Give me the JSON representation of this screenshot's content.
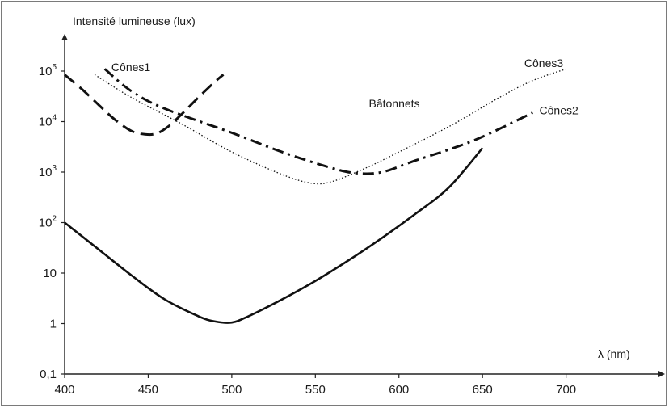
{
  "chart_data": {
    "type": "line",
    "title": "",
    "ylabel": "Intensité lumineuse (lux)",
    "xlabel": "λ (nm)",
    "x_scale": "linear",
    "y_scale": "log",
    "xlim": [
      400,
      720
    ],
    "ylim": [
      0.1,
      100000
    ],
    "x_ticks": [
      {
        "value": 400,
        "label": "400"
      },
      {
        "value": 450,
        "label": "450"
      },
      {
        "value": 500,
        "label": "500"
      },
      {
        "value": 550,
        "label": "550"
      },
      {
        "value": 600,
        "label": "600"
      },
      {
        "value": 650,
        "label": "650"
      },
      {
        "value": 700,
        "label": "700"
      }
    ],
    "y_ticks": [
      {
        "value": 0.1,
        "base": "0,1",
        "exp": ""
      },
      {
        "value": 1,
        "base": "1",
        "exp": ""
      },
      {
        "value": 10,
        "base": "10",
        "exp": ""
      },
      {
        "value": 100,
        "base": "10",
        "exp": "2"
      },
      {
        "value": 1000,
        "base": "10",
        "exp": "3"
      },
      {
        "value": 10000,
        "base": "10",
        "exp": "4"
      },
      {
        "value": 100000,
        "base": "10",
        "exp": "5"
      }
    ],
    "grid": false,
    "legend": "none",
    "series": [
      {
        "name": "Cônes1",
        "style": "long-dash",
        "label_at": [
          428,
          100000
        ],
        "points": [
          [
            400,
            85000
          ],
          [
            410,
            45000
          ],
          [
            420,
            22000
          ],
          [
            430,
            11000
          ],
          [
            440,
            6500
          ],
          [
            448,
            5600
          ],
          [
            455,
            5800
          ],
          [
            462,
            8000
          ],
          [
            470,
            14000
          ],
          [
            480,
            30000
          ],
          [
            490,
            62000
          ],
          [
            495,
            85000
          ]
        ]
      },
      {
        "name": "Cônes2",
        "style": "dash-dot",
        "label_at": [
          684,
          14000
        ],
        "points": [
          [
            424,
            110000
          ],
          [
            440,
            40000
          ],
          [
            460,
            18000
          ],
          [
            500,
            6000
          ],
          [
            530,
            2500
          ],
          [
            560,
            1200
          ],
          [
            575,
            950
          ],
          [
            590,
            1000
          ],
          [
            610,
            1700
          ],
          [
            630,
            2800
          ],
          [
            650,
            5000
          ],
          [
            680,
            15000
          ]
        ]
      },
      {
        "name": "Cônes3",
        "style": "dotted",
        "label_at": [
          675,
          120000
        ],
        "points": [
          [
            418,
            85000
          ],
          [
            440,
            30000
          ],
          [
            470,
            9000
          ],
          [
            500,
            2500
          ],
          [
            530,
            900
          ],
          [
            548,
            600
          ],
          [
            560,
            650
          ],
          [
            580,
            1200
          ],
          [
            600,
            2500
          ],
          [
            630,
            8000
          ],
          [
            660,
            30000
          ],
          [
            680,
            65000
          ],
          [
            700,
            110000
          ]
        ]
      },
      {
        "name": "Bâtonnets",
        "style": "solid",
        "label_at": [
          582,
          19000
        ],
        "points": [
          [
            400,
            100
          ],
          [
            420,
            30
          ],
          [
            440,
            9
          ],
          [
            460,
            3
          ],
          [
            480,
            1.4
          ],
          [
            490,
            1.1
          ],
          [
            500,
            1.05
          ],
          [
            510,
            1.4
          ],
          [
            530,
            3
          ],
          [
            550,
            7
          ],
          [
            570,
            18
          ],
          [
            590,
            50
          ],
          [
            610,
            150
          ],
          [
            630,
            500
          ],
          [
            650,
            3000
          ]
        ]
      }
    ]
  }
}
